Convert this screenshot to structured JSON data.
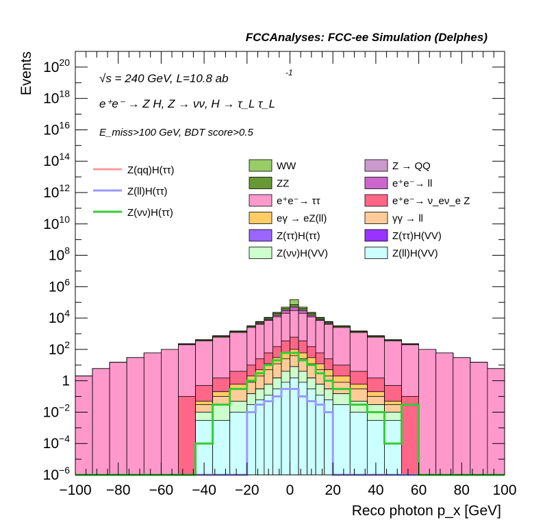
{
  "header": "FCCAnalyses: FCC-ee Simulation (Delphes)",
  "annotations": {
    "energy": "√s = 240 GeV, L=10.8 ab",
    "energy_sup": "-1",
    "process": "e⁺e⁻ → Z H, Z → νν, H → τ_L τ_L",
    "cuts": "E_miss>100 GeV, BDT score>0.5"
  },
  "chart_data": {
    "type": "stacked-histogram",
    "xlabel": "Reco photon p_x [GeV]",
    "ylabel": "Events",
    "xlim": [
      -100,
      100
    ],
    "ylim": [
      1e-06,
      1e+21
    ],
    "yscale": "log",
    "grid": false,
    "x_ticks": [
      "−100",
      "−80",
      "−60",
      "−40",
      "−20",
      "0",
      "20",
      "40",
      "60",
      "80",
      "100"
    ],
    "y_ticks": [
      {
        "base": "10",
        "exp": "−6",
        "value": 1e-06
      },
      {
        "base": "10",
        "exp": "−4",
        "value": 0.0001
      },
      {
        "base": "10",
        "exp": "−2",
        "value": 0.01
      },
      {
        "base": "1",
        "exp": "",
        "value": 1
      },
      {
        "base": "10",
        "exp": "2",
        "value": 100.0
      },
      {
        "base": "10",
        "exp": "4",
        "value": 10000.0
      },
      {
        "base": "10",
        "exp": "6",
        "value": 1000000.0
      },
      {
        "base": "10",
        "exp": "8",
        "value": 100000000.0
      },
      {
        "base": "10",
        "exp": "10",
        "value": 10000000000.0
      },
      {
        "base": "10",
        "exp": "12",
        "value": 1000000000000.0
      },
      {
        "base": "10",
        "exp": "14",
        "value": 100000000000000.0
      },
      {
        "base": "10",
        "exp": "16",
        "value": 1e+16
      },
      {
        "base": "10",
        "exp": "18",
        "value": 1e+18
      },
      {
        "base": "10",
        "exp": "20",
        "value": 1e+20
      }
    ],
    "bin_edges": [
      -100,
      -92,
      -84,
      -76,
      -68,
      -60,
      -52,
      -44,
      -36,
      -28,
      -20,
      -16,
      -12,
      -8,
      -4,
      0,
      4,
      8,
      12,
      16,
      20,
      28,
      36,
      44,
      52,
      60,
      68,
      76,
      84,
      92,
      100
    ],
    "stack_order_bottom_to_top": [
      "Z(ll)H(VV)",
      "Z(νν)H(VV)",
      "Z(ττ)H(VV)",
      "Z(ττ)H(ττ)",
      "γγ → ll",
      "eγ → eZ(ll)",
      "e⁺e⁻→ ν_eν_e Z",
      "e⁺e⁻→ ττ",
      "e⁺e⁻→ ll",
      "ZZ",
      "Z → QQ",
      "WW"
    ],
    "stack_cumulative_tops": [
      {
        "name": "Z(ll)H(VV)",
        "color": "#ccffff",
        "values": [
          0,
          0,
          0,
          0,
          0,
          0,
          0,
          0.003,
          0.003,
          0.01,
          0.03,
          0.06,
          0.12,
          0.3,
          0.8,
          1.5,
          0.8,
          0.3,
          0.12,
          0.06,
          0.03,
          0.01,
          0.003,
          0.003,
          0,
          0,
          0,
          0,
          0,
          0
        ]
      },
      {
        "name": "Z(νν)H(VV)",
        "color": "#ccffcc",
        "values": [
          0,
          0,
          0,
          0,
          0,
          0,
          0,
          0.01,
          0.03,
          0.05,
          0.15,
          0.3,
          0.6,
          1.5,
          4,
          8,
          4,
          1.5,
          0.6,
          0.3,
          0.15,
          0.05,
          0.03,
          0.01,
          0,
          0,
          0,
          0,
          0,
          0
        ]
      },
      {
        "name": "Z(ττ)H(VV)",
        "color": "#9933ff",
        "values": [
          0,
          0,
          0,
          0,
          0,
          0,
          0,
          0.01,
          0.03,
          0.05,
          0.15,
          0.3,
          0.6,
          1.5,
          4,
          8,
          4,
          1.5,
          0.6,
          0.3,
          0.15,
          0.05,
          0.03,
          0.01,
          0,
          0,
          0,
          0,
          0,
          0
        ]
      },
      {
        "name": "Z(ττ)H(ττ)",
        "color": "#9966ff",
        "values": [
          0,
          0,
          0,
          0,
          0,
          0,
          0,
          0.01,
          0.03,
          0.05,
          0.15,
          0.3,
          0.6,
          1.5,
          4,
          8,
          4,
          1.5,
          0.6,
          0.3,
          0.15,
          0.05,
          0.03,
          0.01,
          0,
          0,
          0,
          0,
          0,
          0
        ]
      },
      {
        "name": "γγ → ll",
        "color": "#ffcc99",
        "values": [
          0,
          0,
          0,
          0,
          0,
          0,
          0,
          0.03,
          0.1,
          0.3,
          0.8,
          2,
          5,
          12,
          25,
          40,
          25,
          12,
          5,
          2,
          0.8,
          0.3,
          0.1,
          0.03,
          0,
          0,
          0,
          0,
          0,
          0
        ]
      },
      {
        "name": "eγ → eZ(ll)",
        "color": "#ffcc66",
        "values": [
          0,
          0,
          0,
          0,
          0,
          0,
          0,
          0.05,
          0.2,
          0.6,
          2,
          5,
          12,
          30,
          60,
          100,
          60,
          30,
          12,
          5,
          2,
          0.6,
          0.2,
          0.05,
          0,
          0,
          0,
          0,
          0,
          0
        ]
      },
      {
        "name": "e⁺e⁻→ ν_eν_e Z",
        "color": "#ff6688",
        "values": [
          0,
          0,
          0,
          0,
          0,
          0,
          0.1,
          0.5,
          1.5,
          4,
          10,
          25,
          60,
          150,
          350,
          600,
          350,
          150,
          60,
          25,
          10,
          4,
          1.5,
          0.5,
          0.1,
          0,
          0,
          0,
          0,
          0
        ]
      },
      {
        "name": "e⁺e⁻→ ττ",
        "color": "#ff99cc",
        "values": [
          2,
          6,
          15,
          30,
          60,
          100,
          200,
          350,
          600,
          1200,
          2500,
          4000,
          7000,
          12000,
          20000,
          30000,
          20000,
          12000,
          7000,
          4000,
          2500,
          1200,
          600,
          350,
          200,
          100,
          60,
          30,
          15,
          6
        ]
      },
      {
        "name": "e⁺e⁻→ ll",
        "color": "#cc66cc",
        "values": [
          2,
          6,
          15,
          30,
          60,
          100,
          200,
          350,
          600,
          1200,
          2500,
          4500,
          8000,
          15000,
          30000,
          50000,
          30000,
          15000,
          8000,
          4500,
          2500,
          1200,
          600,
          350,
          200,
          100,
          60,
          30,
          15,
          6
        ]
      },
      {
        "name": "ZZ",
        "color": "#669933",
        "values": [
          2,
          6,
          15,
          30,
          60,
          100,
          220,
          400,
          700,
          1400,
          3000,
          5500,
          10000,
          20000,
          40000,
          70000,
          40000,
          20000,
          10000,
          5500,
          3000,
          1400,
          700,
          400,
          220,
          100,
          60,
          30,
          15,
          6
        ]
      },
      {
        "name": "Z → QQ",
        "color": "#cc99cc",
        "values": [
          2,
          6,
          15,
          30,
          60,
          100,
          220,
          400,
          700,
          1400,
          3000,
          5500,
          10000,
          20000,
          40000,
          70000,
          40000,
          20000,
          10000,
          5500,
          3000,
          1400,
          700,
          400,
          220,
          100,
          60,
          30,
          15,
          6
        ]
      },
      {
        "name": "WW",
        "color": "#99cc66",
        "values": [
          2,
          6,
          15,
          30,
          60,
          100,
          230,
          420,
          750,
          1500,
          3200,
          6000,
          11000,
          23000,
          50000,
          150000,
          50000,
          23000,
          11000,
          6000,
          3200,
          1500,
          750,
          420,
          230,
          100,
          60,
          30,
          15,
          6
        ]
      }
    ],
    "signal_series": [
      {
        "name": "Z(qq)H(ττ)",
        "color": "#ff9999",
        "values": []
      },
      {
        "name": "Z(ll)H(ττ)",
        "color": "#9999ff",
        "values": [
          0,
          0,
          0,
          0,
          0,
          0,
          0,
          0,
          0,
          0,
          0.01,
          0.03,
          0.05,
          0.1,
          0.3,
          0.3,
          0.1,
          0.05,
          0.03,
          0.01,
          0,
          0,
          0,
          0,
          0,
          0,
          0,
          0,
          0,
          0
        ]
      },
      {
        "name": "Z(νν)H(ττ)",
        "color": "#33cc33",
        "values": [
          0,
          0,
          0,
          0,
          0,
          0,
          0,
          0.0001,
          0.03,
          0.3,
          1,
          3,
          10,
          20,
          60,
          60,
          20,
          10,
          3,
          1,
          0.3,
          0.03,
          0.01,
          0.0001,
          0.03,
          0,
          0,
          0,
          0,
          0
        ]
      }
    ],
    "legend_left": [
      {
        "name": "Z(qq)H(ττ)",
        "color": "#ff9999",
        "style": "line"
      },
      {
        "name": "Z(ll)H(ττ)",
        "color": "#9999ff",
        "style": "line"
      },
      {
        "name": "Z(νν)H(ττ)",
        "color": "#33cc33",
        "style": "line"
      }
    ],
    "legend_mid": [
      {
        "name": "WW",
        "color": "#99cc66"
      },
      {
        "name": "ZZ",
        "color": "#669933"
      },
      {
        "name": "e⁺e⁻→ ττ",
        "color": "#ff99cc"
      },
      {
        "name": "eγ → eZ(ll)",
        "color": "#ffcc66"
      },
      {
        "name": "Z(ττ)H(ττ)",
        "color": "#9966ff"
      },
      {
        "name": "Z(νν)H(VV)",
        "color": "#ccffcc"
      }
    ],
    "legend_right": [
      {
        "name": "Z → QQ",
        "color": "#cc99cc"
      },
      {
        "name": "e⁺e⁻→ ll",
        "color": "#cc66cc"
      },
      {
        "name": "e⁺e⁻→ ν_eν_e Z",
        "color": "#ff6688"
      },
      {
        "name": "γγ → ll",
        "color": "#ffcc99"
      },
      {
        "name": "Z(ττ)H(VV)",
        "color": "#9933ff"
      },
      {
        "name": "Z(ll)H(VV)",
        "color": "#ccffff"
      }
    ]
  }
}
